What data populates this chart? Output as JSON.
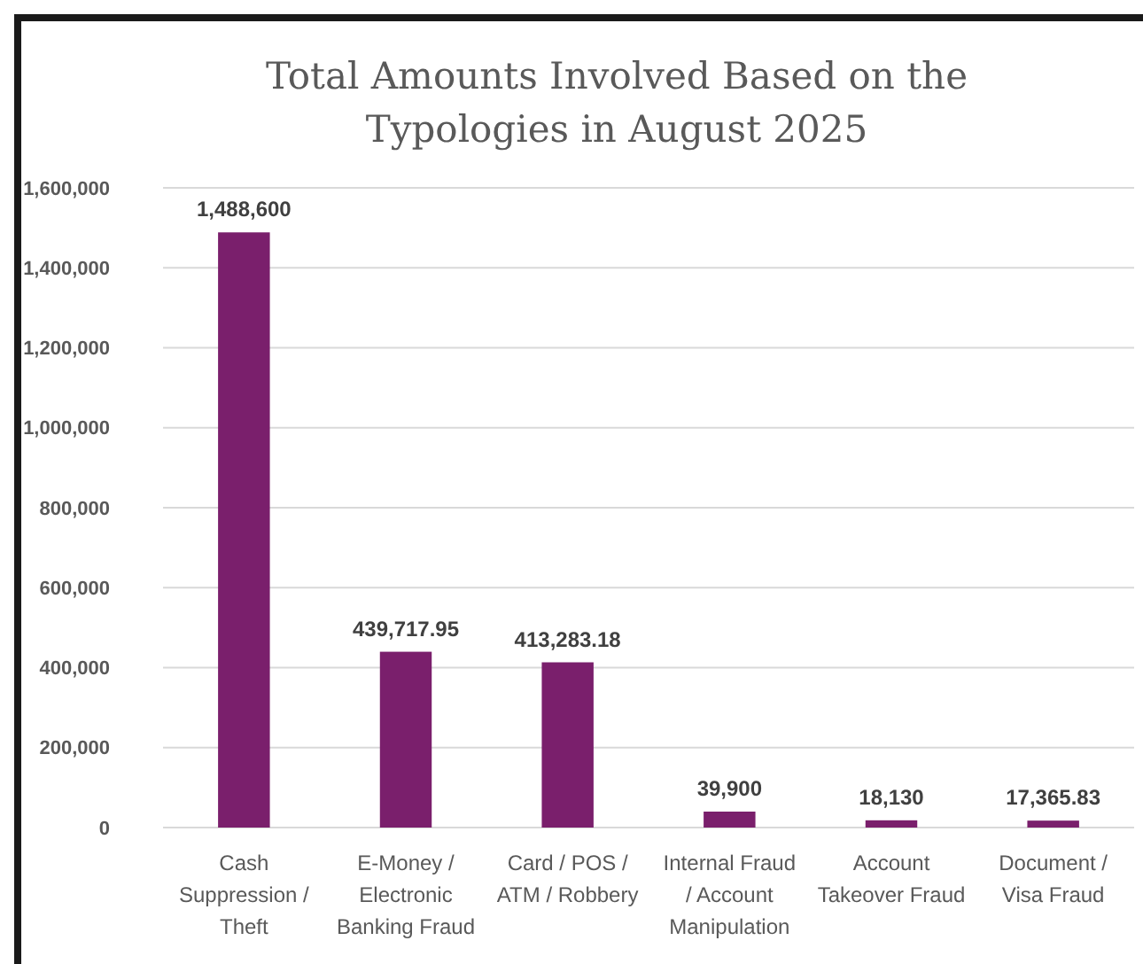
{
  "chart_data": {
    "type": "bar",
    "title": "Total Amounts Involved Based on the Typologies in August  2025",
    "categories": [
      "Cash Suppression / Theft",
      "E-Money / Electronic Banking Fraud",
      "Card / POS / ATM / Robbery",
      "Internal Fraud / Account Manipulation",
      "Account Takeover Fraud",
      "Document / Visa Fraud"
    ],
    "values": [
      1488600,
      439717.95,
      413283.18,
      39900,
      18130,
      17365.83
    ],
    "value_labels": [
      "1,488,600",
      "439,717.95",
      "413,283.18",
      "39,900",
      "18,130",
      "17,365.83"
    ],
    "color": "#7a1f6c",
    "ylim": [
      0,
      1600000
    ],
    "yticks": [
      {
        "value": 0,
        "label": "0"
      },
      {
        "value": 200000,
        "label": "200,000"
      },
      {
        "value": 400000,
        "label": "400,000"
      },
      {
        "value": 600000,
        "label": "600,000"
      },
      {
        "value": 800000,
        "label": "800,000"
      },
      {
        "value": 1000000,
        "label": "1,000,000"
      },
      {
        "value": 1200000,
        "label": "1,200,000"
      },
      {
        "value": 1400000,
        "label": "1,400,000"
      },
      {
        "value": 1600000,
        "label": "1,600,000"
      }
    ],
    "grid": "y"
  }
}
